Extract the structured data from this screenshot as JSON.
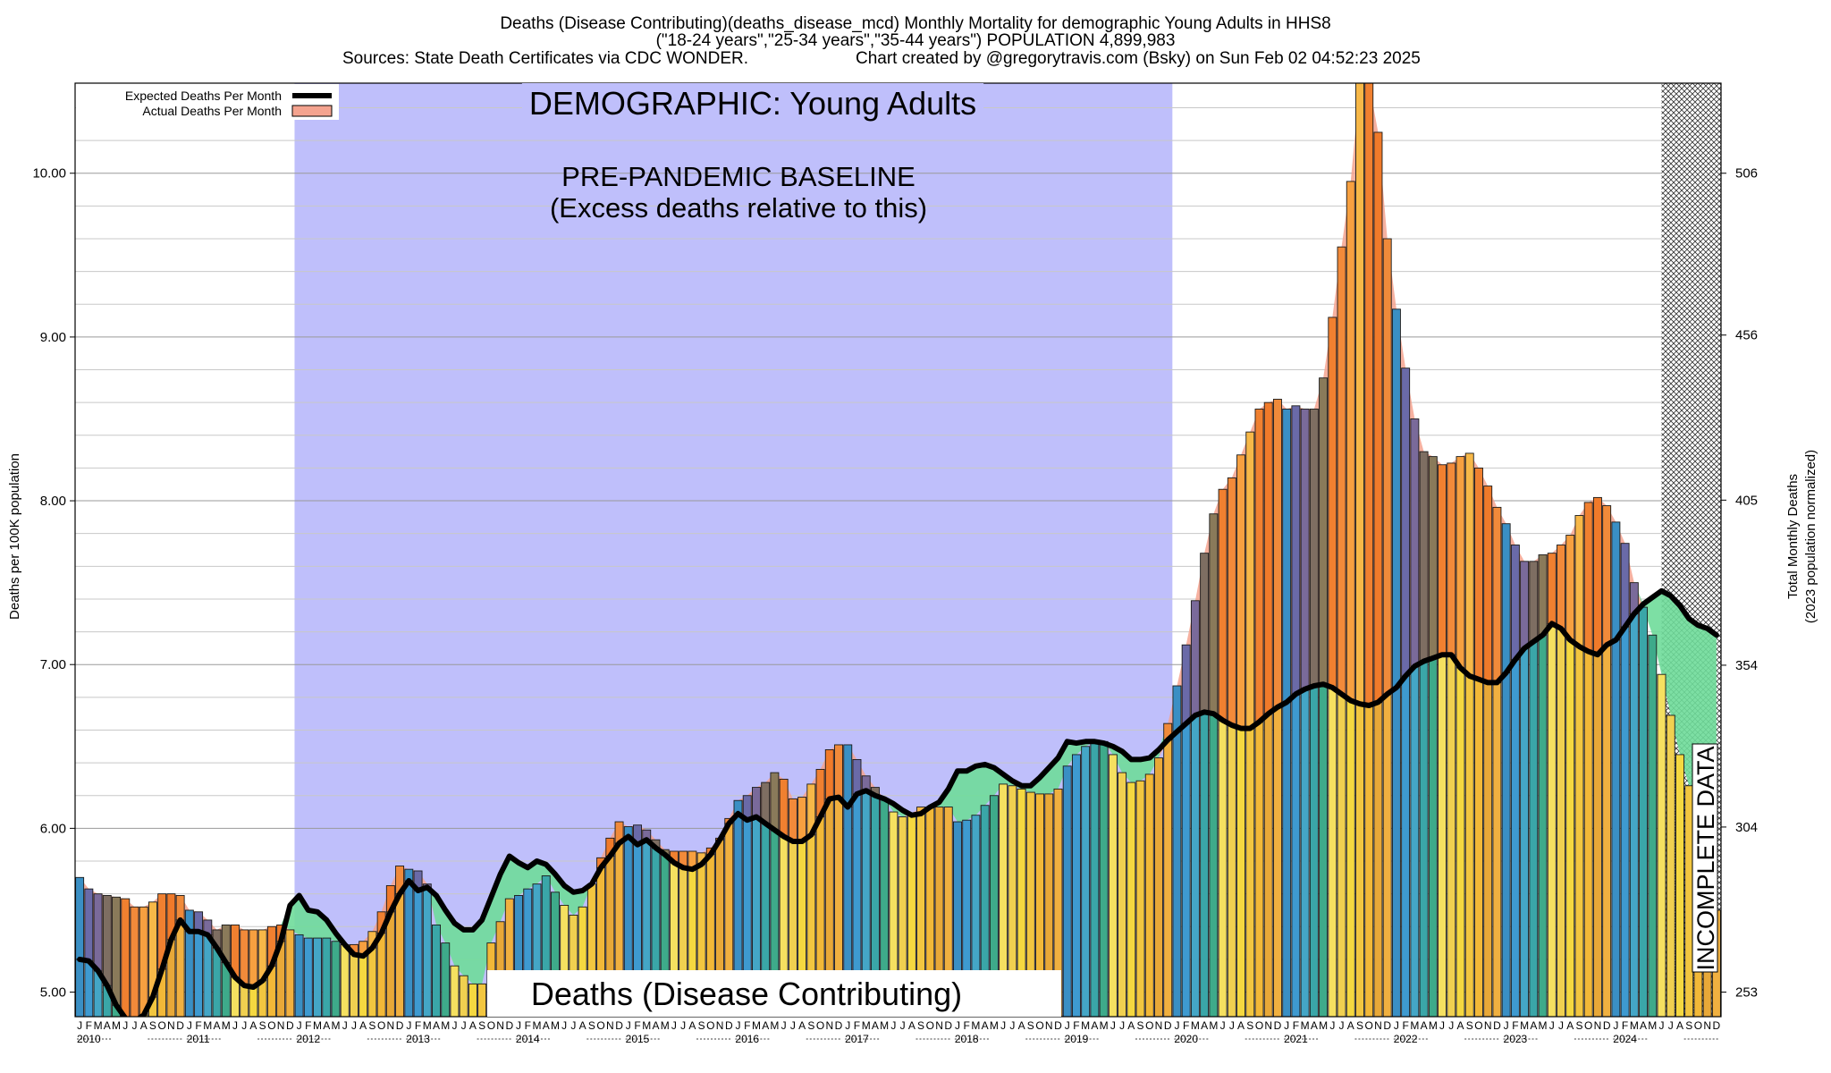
{
  "chart_data": {
    "type": "bar",
    "title_lines": [
      "Deaths (Disease Contributing)(deaths_disease_mcd) Monthly Mortality for demographic Young Adults in HHS8",
      "(\"18-24 years\",\"25-34 years\",\"35-44 years\") POPULATION 4,899,983",
      "Sources: State Death Certificates via CDC WONDER.",
      "Chart created by @gregorytravis.com (Bsky) on Sun Feb 02 04:52:23 2025"
    ],
    "ylabel": "Deaths per 100K population",
    "y2label_lines": [
      "Total Monthly Deaths",
      "(2023 population normalized)"
    ],
    "ylim": [
      4.85,
      10.55
    ],
    "y_ticks": [
      "5.00",
      "6.00",
      "7.00",
      "8.00",
      "9.00",
      "10.00"
    ],
    "y2_ticks": [
      "253",
      "304",
      "354",
      "405",
      "456",
      "506"
    ],
    "y2_tick_values": [
      253,
      304,
      354,
      405,
      456,
      506
    ],
    "y2_per_y": 50.6,
    "grid": true,
    "legend": {
      "position": "top-left",
      "expected_label": "Expected Deaths Per Month",
      "actual_label": "Actual Deaths Per Month"
    },
    "annotations": {
      "demographic": "DEMOGRAPHIC: Young Adults",
      "baseline_line1": "PRE-PANDEMIC BASELINE",
      "baseline_line2": "(Excess deaths relative to this)",
      "bottom_label": "Deaths (Disease Contributing)",
      "incomplete": "INCOMPLETE DATA"
    },
    "baseline_period": [
      "2012-01",
      "2019-12"
    ],
    "incomplete_from": "2024-07",
    "month_letters": [
      "J",
      "F",
      "M",
      "A",
      "M",
      "J",
      "J",
      "A",
      "S",
      "O",
      "N",
      "D"
    ],
    "years": [
      "2010",
      "2011",
      "2012",
      "2013",
      "2014",
      "2015",
      "2016",
      "2017",
      "2018",
      "2019",
      "2020",
      "2021",
      "2022",
      "2023",
      "2024"
    ],
    "actual": [
      5.7,
      5.63,
      5.6,
      5.59,
      5.58,
      5.57,
      5.52,
      5.52,
      5.55,
      5.6,
      5.6,
      5.59,
      5.5,
      5.49,
      5.44,
      5.38,
      5.41,
      5.41,
      5.38,
      5.38,
      5.38,
      5.4,
      5.41,
      5.38,
      5.35,
      5.33,
      5.33,
      5.33,
      5.31,
      5.29,
      5.29,
      5.31,
      5.37,
      5.49,
      5.65,
      5.77,
      5.75,
      5.74,
      5.66,
      5.41,
      5.3,
      5.16,
      5.1,
      5.05,
      5.05,
      5.3,
      5.43,
      5.57,
      5.59,
      5.63,
      5.66,
      5.71,
      5.61,
      5.53,
      5.47,
      5.52,
      5.66,
      5.82,
      5.94,
      6.04,
      6.01,
      6.02,
      5.99,
      5.93,
      5.87,
      5.86,
      5.86,
      5.86,
      5.85,
      5.88,
      5.94,
      6.06,
      6.17,
      6.2,
      6.25,
      6.28,
      6.34,
      6.3,
      6.18,
      6.19,
      6.27,
      6.36,
      6.48,
      6.51,
      6.51,
      6.42,
      6.32,
      6.25,
      6.18,
      6.1,
      6.07,
      6.09,
      6.13,
      6.13,
      6.13,
      6.13,
      6.04,
      6.05,
      6.08,
      6.14,
      6.2,
      6.27,
      6.26,
      6.24,
      6.22,
      6.21,
      6.21,
      6.24,
      6.38,
      6.45,
      6.5,
      6.53,
      6.53,
      6.45,
      6.34,
      6.28,
      6.29,
      6.33,
      6.43,
      6.64,
      6.87,
      7.12,
      7.39,
      7.68,
      7.92,
      8.07,
      8.14,
      8.28,
      8.42,
      8.56,
      8.6,
      8.62,
      8.56,
      8.58,
      8.56,
      8.56,
      8.75,
      9.12,
      9.55,
      9.95,
      10.55,
      10.55,
      10.25,
      9.6,
      9.17,
      8.81,
      8.5,
      8.3,
      8.27,
      8.22,
      8.23,
      8.27,
      8.29,
      8.2,
      8.09,
      7.96,
      7.86,
      7.73,
      7.63,
      7.63,
      7.67,
      7.68,
      7.73,
      7.79,
      7.91,
      7.99,
      8.02,
      7.97,
      7.87,
      7.74,
      7.5,
      7.35,
      7.18,
      6.94,
      6.69,
      6.45,
      6.26,
      6.02,
      5.78,
      5.5
    ],
    "expected": [
      5.2,
      5.19,
      5.13,
      5.04,
      4.92,
      4.84,
      4.82,
      4.86,
      4.97,
      5.14,
      5.32,
      5.44,
      5.37,
      5.37,
      5.35,
      5.27,
      5.18,
      5.09,
      5.04,
      5.03,
      5.07,
      5.16,
      5.31,
      5.53,
      5.59,
      5.5,
      5.49,
      5.44,
      5.36,
      5.29,
      5.23,
      5.22,
      5.27,
      5.36,
      5.49,
      5.6,
      5.68,
      5.62,
      5.64,
      5.59,
      5.5,
      5.42,
      5.38,
      5.38,
      5.44,
      5.58,
      5.72,
      5.83,
      5.79,
      5.76,
      5.8,
      5.78,
      5.72,
      5.65,
      5.61,
      5.62,
      5.66,
      5.76,
      5.83,
      5.91,
      5.95,
      5.9,
      5.93,
      5.88,
      5.84,
      5.79,
      5.76,
      5.75,
      5.78,
      5.84,
      5.93,
      6.03,
      6.09,
      6.05,
      6.07,
      6.03,
      5.99,
      5.95,
      5.92,
      5.92,
      5.96,
      6.07,
      6.18,
      6.19,
      6.13,
      6.21,
      6.23,
      6.2,
      6.18,
      6.15,
      6.11,
      6.08,
      6.09,
      6.13,
      6.16,
      6.24,
      6.35,
      6.35,
      6.38,
      6.39,
      6.37,
      6.33,
      6.29,
      6.26,
      6.26,
      6.31,
      6.37,
      6.43,
      6.53,
      6.52,
      6.53,
      6.53,
      6.52,
      6.5,
      6.47,
      6.42,
      6.42,
      6.43,
      6.48,
      6.54,
      6.59,
      6.64,
      6.69,
      6.71,
      6.7,
      6.66,
      6.63,
      6.61,
      6.61,
      6.65,
      6.7,
      6.74,
      6.77,
      6.82,
      6.85,
      6.87,
      6.88,
      6.86,
      6.82,
      6.78,
      6.76,
      6.75,
      6.77,
      6.82,
      6.86,
      6.93,
      6.99,
      7.02,
      7.04,
      7.06,
      7.06,
      6.98,
      6.93,
      6.91,
      6.89,
      6.89,
      6.95,
      7.03,
      7.1,
      7.14,
      7.18,
      7.25,
      7.22,
      7.15,
      7.11,
      7.08,
      7.06,
      7.12,
      7.15,
      7.23,
      7.31,
      7.37,
      7.41,
      7.45,
      7.42,
      7.36,
      7.28,
      7.24,
      7.22,
      7.18
    ]
  }
}
